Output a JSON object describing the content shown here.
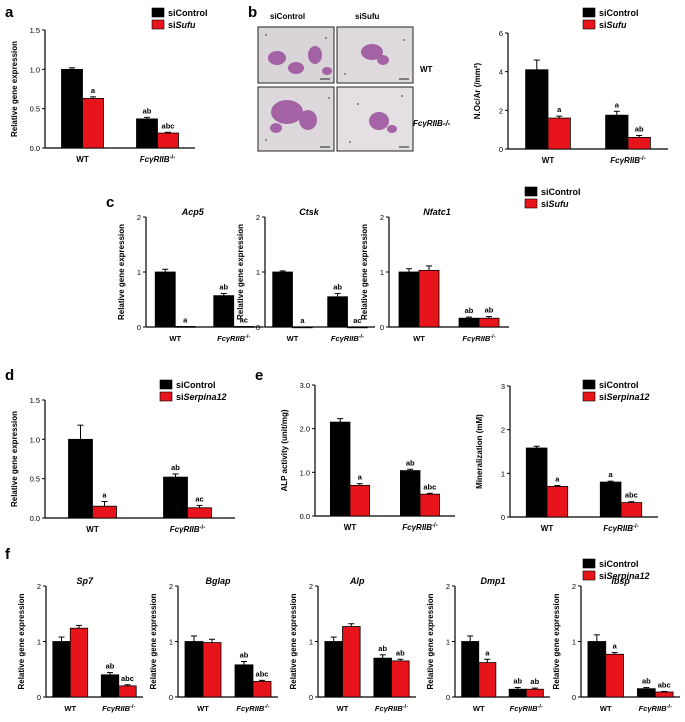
{
  "panel_labels": [
    "a",
    "b",
    "c",
    "d",
    "e",
    "f"
  ],
  "colors": {
    "siControl": "#000000",
    "siTreat": "#e8141b",
    "axis": "#000000"
  },
  "legends": {
    "a": [
      "siControl",
      "siSufu"
    ],
    "b": [
      "siControl",
      "siSufu"
    ],
    "c": [
      "siControl",
      "siSufu"
    ],
    "d": [
      "siControl",
      "siSerpina12"
    ],
    "e": [
      "siControl",
      "siSerpina12"
    ],
    "f": [
      "siControl",
      "siSerpina12"
    ]
  },
  "micrographs": {
    "col_labels": [
      "siControl",
      "siSufu"
    ],
    "row_labels": [
      "WT",
      "FcγRIIB-/-"
    ]
  },
  "chart_data": [
    {
      "id": "a",
      "type": "bar",
      "gene": "",
      "ylabel": "Relative gene expression",
      "ylim": [
        0,
        1.5
      ],
      "yticks": [
        "0.0",
        "0.5",
        "1.0",
        "1.5"
      ],
      "categories": [
        "WT",
        "FcγRIIB-/-"
      ],
      "series": [
        {
          "name": "siControl",
          "values": [
            1.0,
            0.37
          ],
          "errors": [
            0.02,
            0.02
          ],
          "labels": [
            "",
            "ab"
          ]
        },
        {
          "name": "siSufu",
          "values": [
            0.63,
            0.19
          ],
          "errors": [
            0.02,
            0.01
          ],
          "labels": [
            "a",
            "abc"
          ]
        }
      ]
    },
    {
      "id": "b",
      "type": "bar",
      "gene": "",
      "ylabel": "N.Oc/Ar (/mm²)",
      "ylim": [
        0,
        6
      ],
      "yticks": [
        "0",
        "2",
        "4",
        "6"
      ],
      "categories": [
        "WT",
        "FcγRIIB-/-"
      ],
      "series": [
        {
          "name": "siControl",
          "values": [
            4.1,
            1.75
          ],
          "errors": [
            0.5,
            0.2
          ],
          "labels": [
            "",
            "a"
          ]
        },
        {
          "name": "siSufu",
          "values": [
            1.6,
            0.6
          ],
          "errors": [
            0.1,
            0.1
          ],
          "labels": [
            "a",
            "ab"
          ]
        }
      ]
    },
    {
      "id": "c1",
      "type": "bar",
      "gene": "Acp5",
      "ylabel": "Relative gene expression",
      "ylim": [
        0,
        2
      ],
      "yticks": [
        "0",
        "1",
        "2"
      ],
      "categories": [
        "WT",
        "FcγRIIB-/-"
      ],
      "series": [
        {
          "name": "siControl",
          "values": [
            1.0,
            0.57
          ],
          "errors": [
            0.05,
            0.04
          ],
          "labels": [
            "",
            "ab"
          ]
        },
        {
          "name": "siSufu",
          "values": [
            0.01,
            0.01
          ],
          "errors": [
            0,
            0
          ],
          "labels": [
            "a",
            "ac"
          ]
        }
      ]
    },
    {
      "id": "c2",
      "type": "bar",
      "gene": "Ctsk",
      "ylabel": "Relative gene expression",
      "ylim": [
        0,
        2
      ],
      "yticks": [
        "0",
        "1",
        "2"
      ],
      "categories": [
        "WT",
        "FcγRIIB-/-"
      ],
      "series": [
        {
          "name": "siControl",
          "values": [
            1.0,
            0.55
          ],
          "errors": [
            0.02,
            0.06
          ],
          "labels": [
            "",
            "ab"
          ]
        },
        {
          "name": "siSufu",
          "values": [
            0.0,
            0.0
          ],
          "errors": [
            0,
            0
          ],
          "labels": [
            "a",
            "ac"
          ]
        }
      ]
    },
    {
      "id": "c3",
      "type": "bar",
      "gene": "Nfatc1",
      "ylabel": "Relative gene expression",
      "ylim": [
        0,
        2
      ],
      "yticks": [
        "0",
        "1",
        "2"
      ],
      "categories": [
        "WT",
        "FcγRIIB-/-"
      ],
      "series": [
        {
          "name": "siControl",
          "values": [
            1.0,
            0.16
          ],
          "errors": [
            0.06,
            0.02
          ],
          "labels": [
            "",
            "ab"
          ]
        },
        {
          "name": "siSufu",
          "values": [
            1.03,
            0.16
          ],
          "errors": [
            0.08,
            0.03
          ],
          "labels": [
            "",
            "ab"
          ]
        }
      ]
    },
    {
      "id": "d",
      "type": "bar",
      "gene": "",
      "ylabel": "Relative gene expression",
      "ylim": [
        0,
        1.5
      ],
      "yticks": [
        "0.0",
        "0.5",
        "1.0",
        "1.5"
      ],
      "categories": [
        "WT",
        "FcγRIIB-/-"
      ],
      "series": [
        {
          "name": "siControl",
          "values": [
            1.0,
            0.52
          ],
          "errors": [
            0.18,
            0.04
          ],
          "labels": [
            "",
            "ab"
          ]
        },
        {
          "name": "siSerpina12",
          "values": [
            0.15,
            0.13
          ],
          "errors": [
            0.06,
            0.03
          ],
          "labels": [
            "a",
            "ac"
          ]
        }
      ]
    },
    {
      "id": "e1",
      "type": "bar",
      "gene": "",
      "ylabel": "ALP activity (unit/mg)",
      "ylim": [
        0,
        3.0
      ],
      "yticks": [
        "0.0",
        "1.0",
        "2.0",
        "3.0"
      ],
      "categories": [
        "WT",
        "FcγRIIB-/-"
      ],
      "series": [
        {
          "name": "siControl",
          "values": [
            2.15,
            1.04
          ],
          "errors": [
            0.08,
            0.03
          ],
          "labels": [
            "",
            "ab"
          ]
        },
        {
          "name": "siSerpina12",
          "values": [
            0.7,
            0.5
          ],
          "errors": [
            0.04,
            0.02
          ],
          "labels": [
            "a",
            "abc"
          ]
        }
      ]
    },
    {
      "id": "e2",
      "type": "bar",
      "gene": "",
      "ylabel": "Mineralization (mM)",
      "ylim": [
        0,
        3
      ],
      "yticks": [
        "0",
        "1",
        "2",
        "3"
      ],
      "categories": [
        "WT",
        "FcγRIIB-/-"
      ],
      "series": [
        {
          "name": "siControl",
          "values": [
            1.58,
            0.8
          ],
          "errors": [
            0.04,
            0.02
          ],
          "labels": [
            "",
            "a"
          ]
        },
        {
          "name": "siSerpina12",
          "values": [
            0.7,
            0.33
          ],
          "errors": [
            0.02,
            0.02
          ],
          "labels": [
            "a",
            "abc"
          ]
        }
      ]
    },
    {
      "id": "f1",
      "type": "bar",
      "gene": "Sp7",
      "ylabel": "Relative gene expression",
      "ylim": [
        0,
        2
      ],
      "yticks": [
        "0",
        "1",
        "2"
      ],
      "categories": [
        "WT",
        "FcγRIIB-/-"
      ],
      "series": [
        {
          "name": "siControl",
          "values": [
            1.0,
            0.4
          ],
          "errors": [
            0.08,
            0.04
          ],
          "labels": [
            "",
            "ab"
          ]
        },
        {
          "name": "siSerpina12",
          "values": [
            1.24,
            0.2
          ],
          "errors": [
            0.05,
            0.02
          ],
          "labels": [
            "",
            "abc"
          ]
        }
      ]
    },
    {
      "id": "f2",
      "type": "bar",
      "gene": "Bglap",
      "ylabel": "Relative gene expression",
      "ylim": [
        0,
        2
      ],
      "yticks": [
        "0",
        "1",
        "2"
      ],
      "categories": [
        "WT",
        "FcγRIIB-/-"
      ],
      "series": [
        {
          "name": "siControl",
          "values": [
            1.0,
            0.58
          ],
          "errors": [
            0.1,
            0.06
          ],
          "labels": [
            "",
            "ab"
          ]
        },
        {
          "name": "siSerpina12",
          "values": [
            0.98,
            0.28
          ],
          "errors": [
            0.06,
            0.02
          ],
          "labels": [
            "",
            "abc"
          ]
        }
      ]
    },
    {
      "id": "f3",
      "type": "bar",
      "gene": "Alp",
      "ylabel": "Relative gene expression",
      "ylim": [
        0,
        2
      ],
      "yticks": [
        "0",
        "1",
        "2"
      ],
      "categories": [
        "WT",
        "FcγRIIB-/-"
      ],
      "series": [
        {
          "name": "siControl",
          "values": [
            1.0,
            0.7
          ],
          "errors": [
            0.08,
            0.06
          ],
          "labels": [
            "",
            "ab"
          ]
        },
        {
          "name": "siSerpina12",
          "values": [
            1.27,
            0.65
          ],
          "errors": [
            0.05,
            0.03
          ],
          "labels": [
            "",
            "ab"
          ]
        }
      ]
    },
    {
      "id": "f4",
      "type": "bar",
      "gene": "Dmp1",
      "ylabel": "Relative gene expression",
      "ylim": [
        0,
        2
      ],
      "yticks": [
        "0",
        "1",
        "2"
      ],
      "categories": [
        "WT",
        "FcγRIIB-/-"
      ],
      "series": [
        {
          "name": "siControl",
          "values": [
            1.0,
            0.14
          ],
          "errors": [
            0.1,
            0.03
          ],
          "labels": [
            "",
            "ab"
          ]
        },
        {
          "name": "siSerpina12",
          "values": [
            0.62,
            0.14
          ],
          "errors": [
            0.06,
            0.02
          ],
          "labels": [
            "a",
            "ab"
          ]
        }
      ]
    },
    {
      "id": "f5",
      "type": "bar",
      "gene": "Ibsp",
      "ylabel": "Relative gene expression",
      "ylim": [
        0,
        2
      ],
      "yticks": [
        "0",
        "1",
        "2"
      ],
      "categories": [
        "WT",
        "FcγRIIB-/-"
      ],
      "series": [
        {
          "name": "siControl",
          "values": [
            1.0,
            0.15
          ],
          "errors": [
            0.12,
            0.02
          ],
          "labels": [
            "",
            "ab"
          ]
        },
        {
          "name": "siSerpina12",
          "values": [
            0.77,
            0.09
          ],
          "errors": [
            0.03,
            0.01
          ],
          "labels": [
            "a",
            "abc"
          ]
        }
      ]
    }
  ]
}
